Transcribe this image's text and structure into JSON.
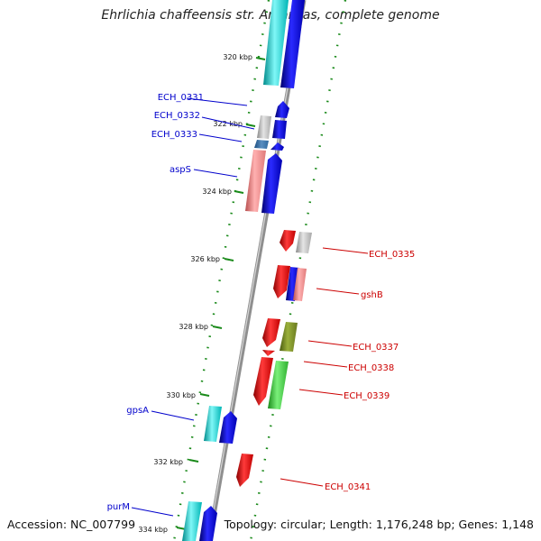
{
  "title": "Ehrlichia chaffeensis str. Arkansas, complete genome",
  "footer": {
    "accession": "Accession: NC_007799",
    "topology": "Topology: circular; Length: 1,176,248 bp; Genes: 1,148"
  },
  "colors": {
    "forward_label": "#0000cc",
    "reverse_label": "#cc0000",
    "backbone": "#8a8a8a",
    "dots": "#1a8a1a"
  },
  "ticks": [
    "320 kbp",
    "322 kbp",
    "324 kbp",
    "326 kbp",
    "328 kbp",
    "330 kbp",
    "332 kbp",
    "334 kbp"
  ],
  "genes": [
    {
      "name": "ECH_0331",
      "strand": "forward"
    },
    {
      "name": "ECH_0332",
      "strand": "forward"
    },
    {
      "name": "ECH_0333",
      "strand": "forward"
    },
    {
      "name": "aspS",
      "strand": "forward"
    },
    {
      "name": "ECH_0335",
      "strand": "reverse"
    },
    {
      "name": "gshB",
      "strand": "reverse"
    },
    {
      "name": "ECH_0337",
      "strand": "reverse"
    },
    {
      "name": "ECH_0338",
      "strand": "reverse"
    },
    {
      "name": "ECH_0339",
      "strand": "reverse"
    },
    {
      "name": "gpsA",
      "strand": "forward"
    },
    {
      "name": "ECH_0341",
      "strand": "reverse"
    },
    {
      "name": "purM",
      "strand": "forward"
    }
  ]
}
